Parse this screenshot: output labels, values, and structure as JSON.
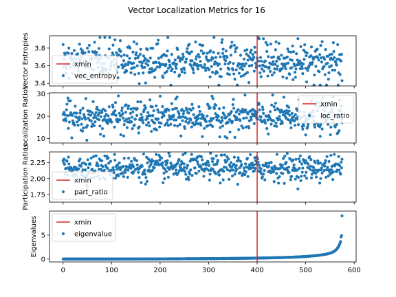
{
  "colors": {
    "points": "#1f77b4",
    "xmin": "#d62728",
    "frame": "#000000",
    "legend_border": "#cccccc"
  },
  "chart_data": {
    "title": "Vector Localization Metrics for 16",
    "type": "scatter",
    "n_points": 576,
    "x_range": [
      -28,
      604
    ],
    "xticks": [
      0,
      100,
      200,
      300,
      400,
      500,
      600
    ],
    "xmin_line": 400,
    "panels": [
      {
        "ylabel": "Vector Entropies",
        "series_name": "vec_entropy",
        "line_name": "xmin",
        "legend_loc": "lower-left",
        "ylim": [
          3.37,
          3.94
        ],
        "yticks": [
          3.4,
          3.6,
          3.8
        ],
        "ytick_labels": [
          "3.4",
          "3.6",
          "3.8"
        ],
        "center": 3.65,
        "spread": 0.11,
        "min": 3.38,
        "max": 3.92
      },
      {
        "ylabel": "Localization Ratios",
        "series_name": "loc_ratio",
        "line_name": "xmin",
        "legend_loc": "upper-right",
        "ylim": [
          8,
          30.5
        ],
        "yticks": [
          10,
          20,
          30
        ],
        "ytick_labels": [
          "10",
          "20",
          "30"
        ],
        "center": 19.5,
        "spread": 3.5,
        "min": 8.8,
        "max": 29.5
      },
      {
        "ylabel": "Participation Ratios",
        "series_name": "part_ratio",
        "line_name": "xmin",
        "legend_loc": "lower-left",
        "ylim": [
          1.63,
          2.42
        ],
        "yticks": [
          1.75,
          2.0,
          2.25
        ],
        "ytick_labels": [
          "1.75",
          "2.00",
          "2.25"
        ],
        "center": 2.17,
        "spread": 0.1,
        "min": 1.66,
        "max": 2.4
      },
      {
        "ylabel": "Eigenvalues",
        "series_name": "eigenvalue",
        "line_name": "xmin",
        "legend_loc": "upper-left",
        "ylim": [
          -0.6,
          10
        ],
        "yticks": [
          0,
          5
        ],
        "ytick_labels": [
          "0",
          "5"
        ],
        "sorted_curve": true,
        "max": 9.0
      }
    ]
  }
}
